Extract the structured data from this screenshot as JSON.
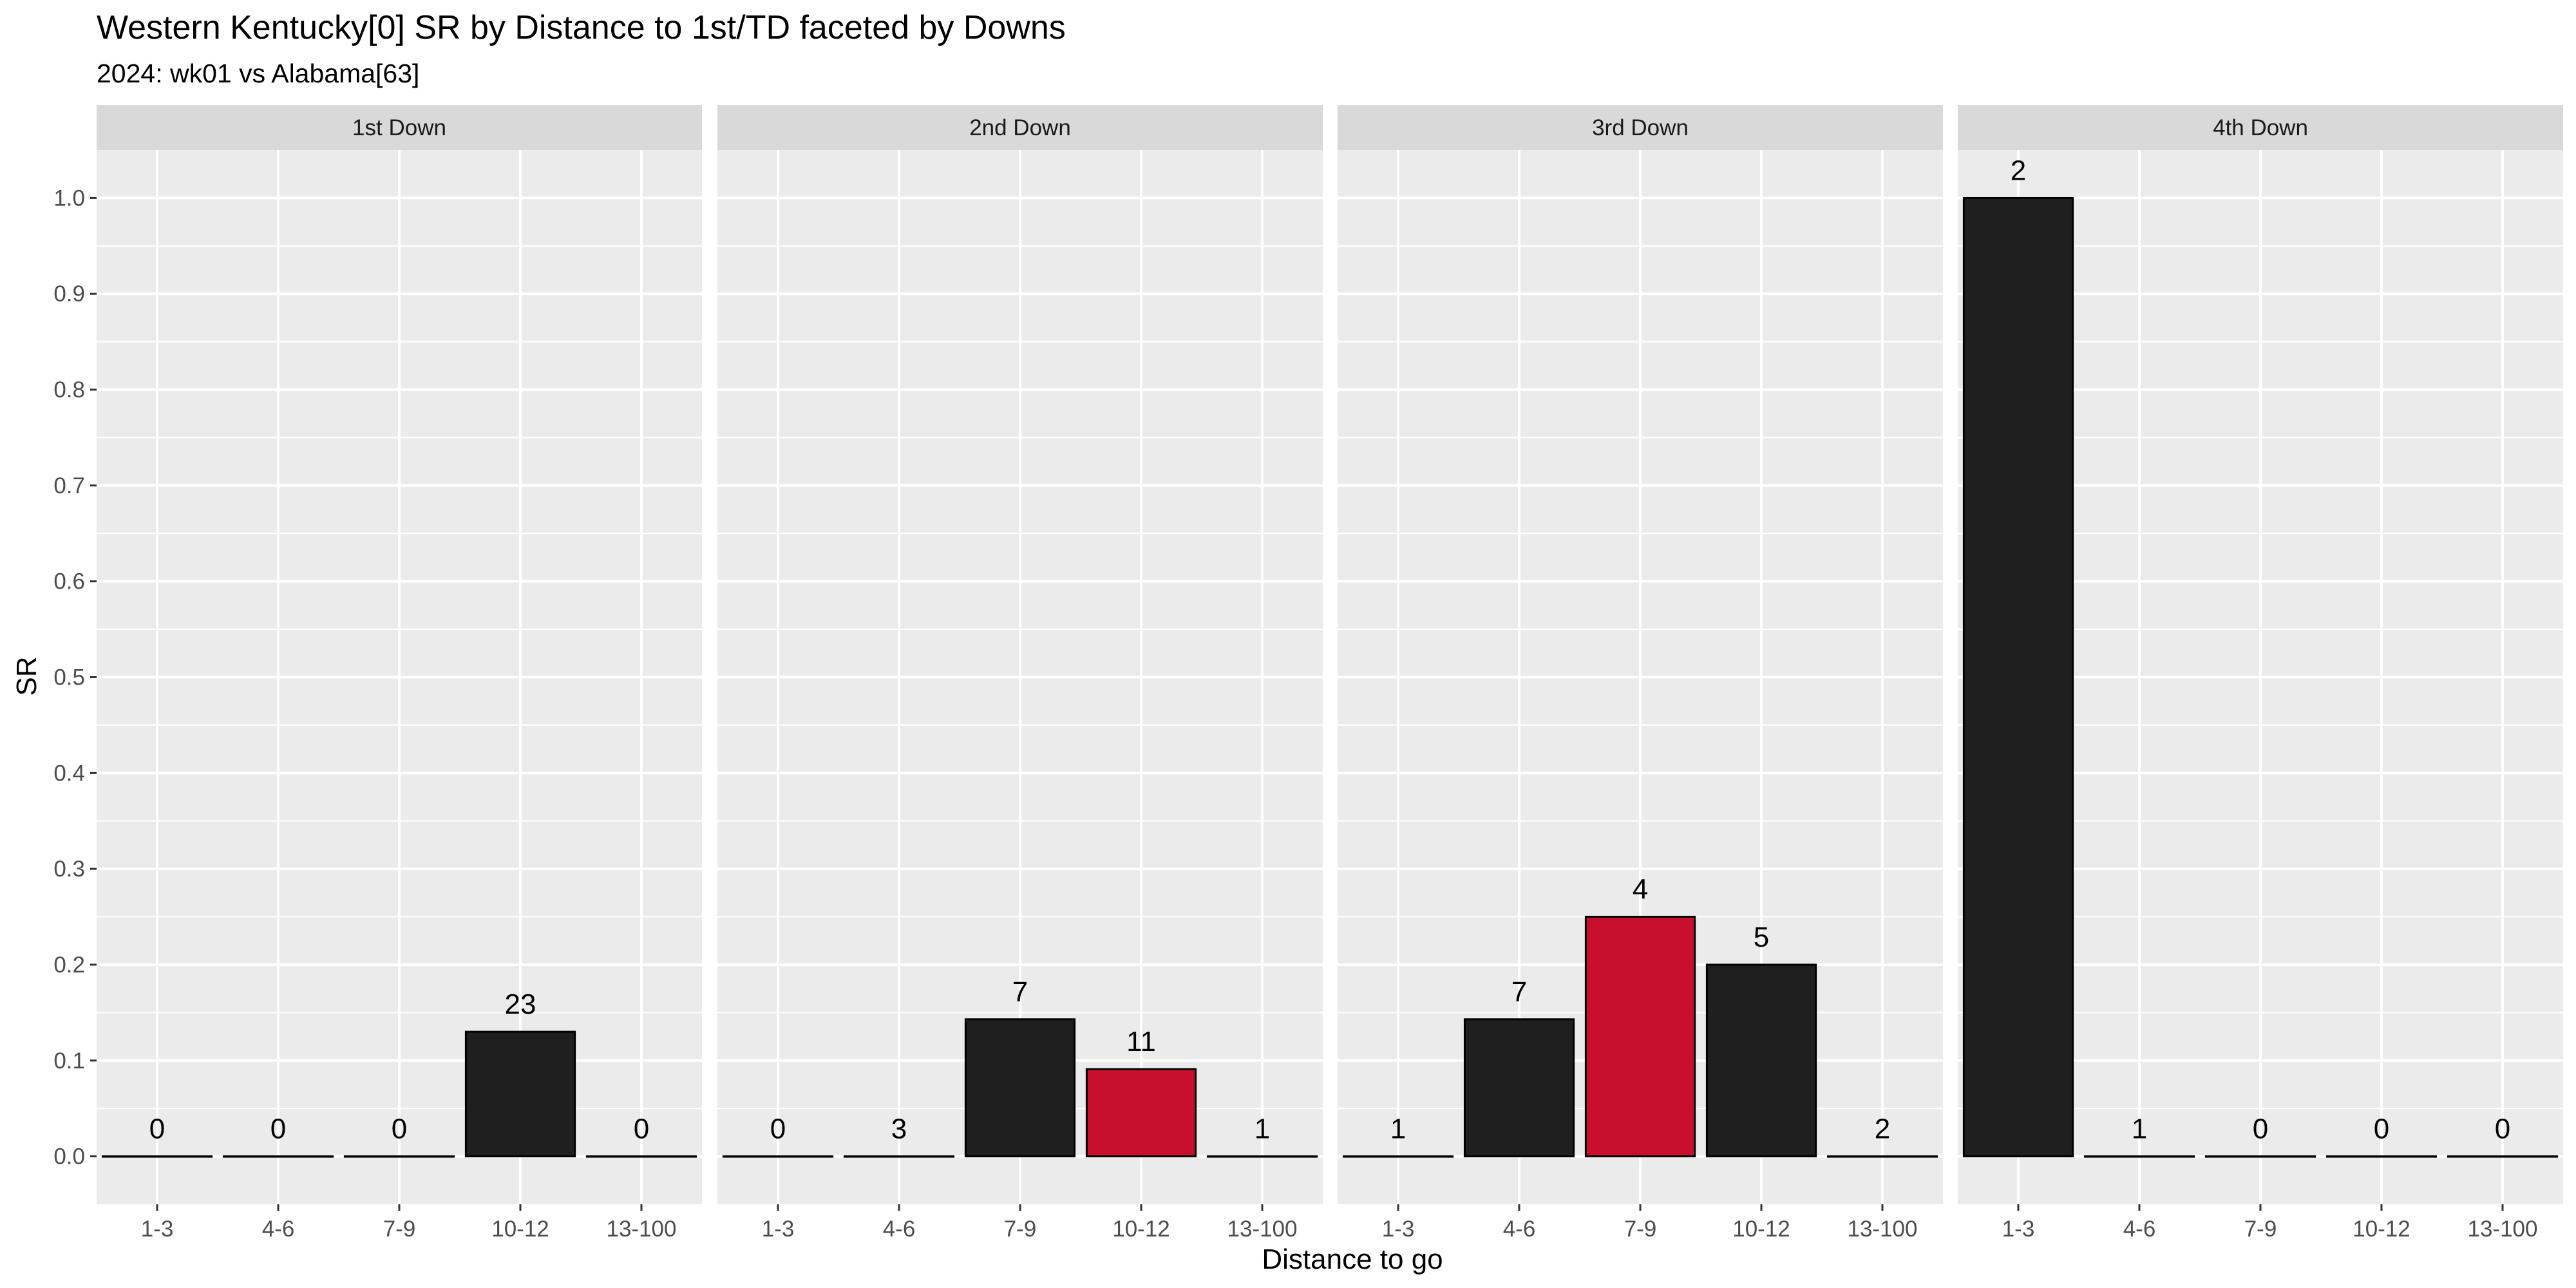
{
  "chart_data": {
    "type": "bar",
    "title": "Western Kentucky[0] SR by Distance to 1st/TD faceted by Downs",
    "subtitle": "2024: wk01 vs Alabama[63]",
    "xlabel": "Distance to go",
    "ylabel": "SR",
    "ylim": [
      -0.05,
      1.05
    ],
    "yticks": [
      "0.0",
      "0.1",
      "0.2",
      "0.3",
      "0.4",
      "0.5",
      "0.6",
      "0.7",
      "0.8",
      "0.9",
      "1.0"
    ],
    "grid": true,
    "categories": [
      "1-3",
      "4-6",
      "7-9",
      "10-12",
      "13-100"
    ],
    "colors": {
      "dark": "#1f1f1f",
      "red": "#c8102e",
      "panel": "#ebebeb",
      "strip": "#d9d9d9",
      "grid": "#ffffff"
    },
    "facets": [
      {
        "name": "1st Down",
        "values": [
          0,
          0,
          0,
          0.13,
          0
        ],
        "labels": [
          "0",
          "0",
          "0",
          "23",
          "0"
        ],
        "colors": [
          "dark",
          "dark",
          "dark",
          "dark",
          "dark"
        ]
      },
      {
        "name": "2nd Down",
        "values": [
          0,
          0,
          0.143,
          0.091,
          0
        ],
        "labels": [
          "0",
          "3",
          "7",
          "11",
          "1"
        ],
        "colors": [
          "dark",
          "dark",
          "dark",
          "red",
          "dark"
        ]
      },
      {
        "name": "3rd Down",
        "values": [
          0,
          0.143,
          0.25,
          0.2,
          0
        ],
        "labels": [
          "1",
          "7",
          "4",
          "5",
          "2"
        ],
        "colors": [
          "dark",
          "dark",
          "red",
          "dark",
          "dark"
        ]
      },
      {
        "name": "4th Down",
        "values": [
          1.0,
          0,
          0,
          0,
          0
        ],
        "labels": [
          "2",
          "1",
          "0",
          "0",
          "0"
        ],
        "colors": [
          "dark",
          "dark",
          "dark",
          "dark",
          "dark"
        ]
      }
    ]
  }
}
